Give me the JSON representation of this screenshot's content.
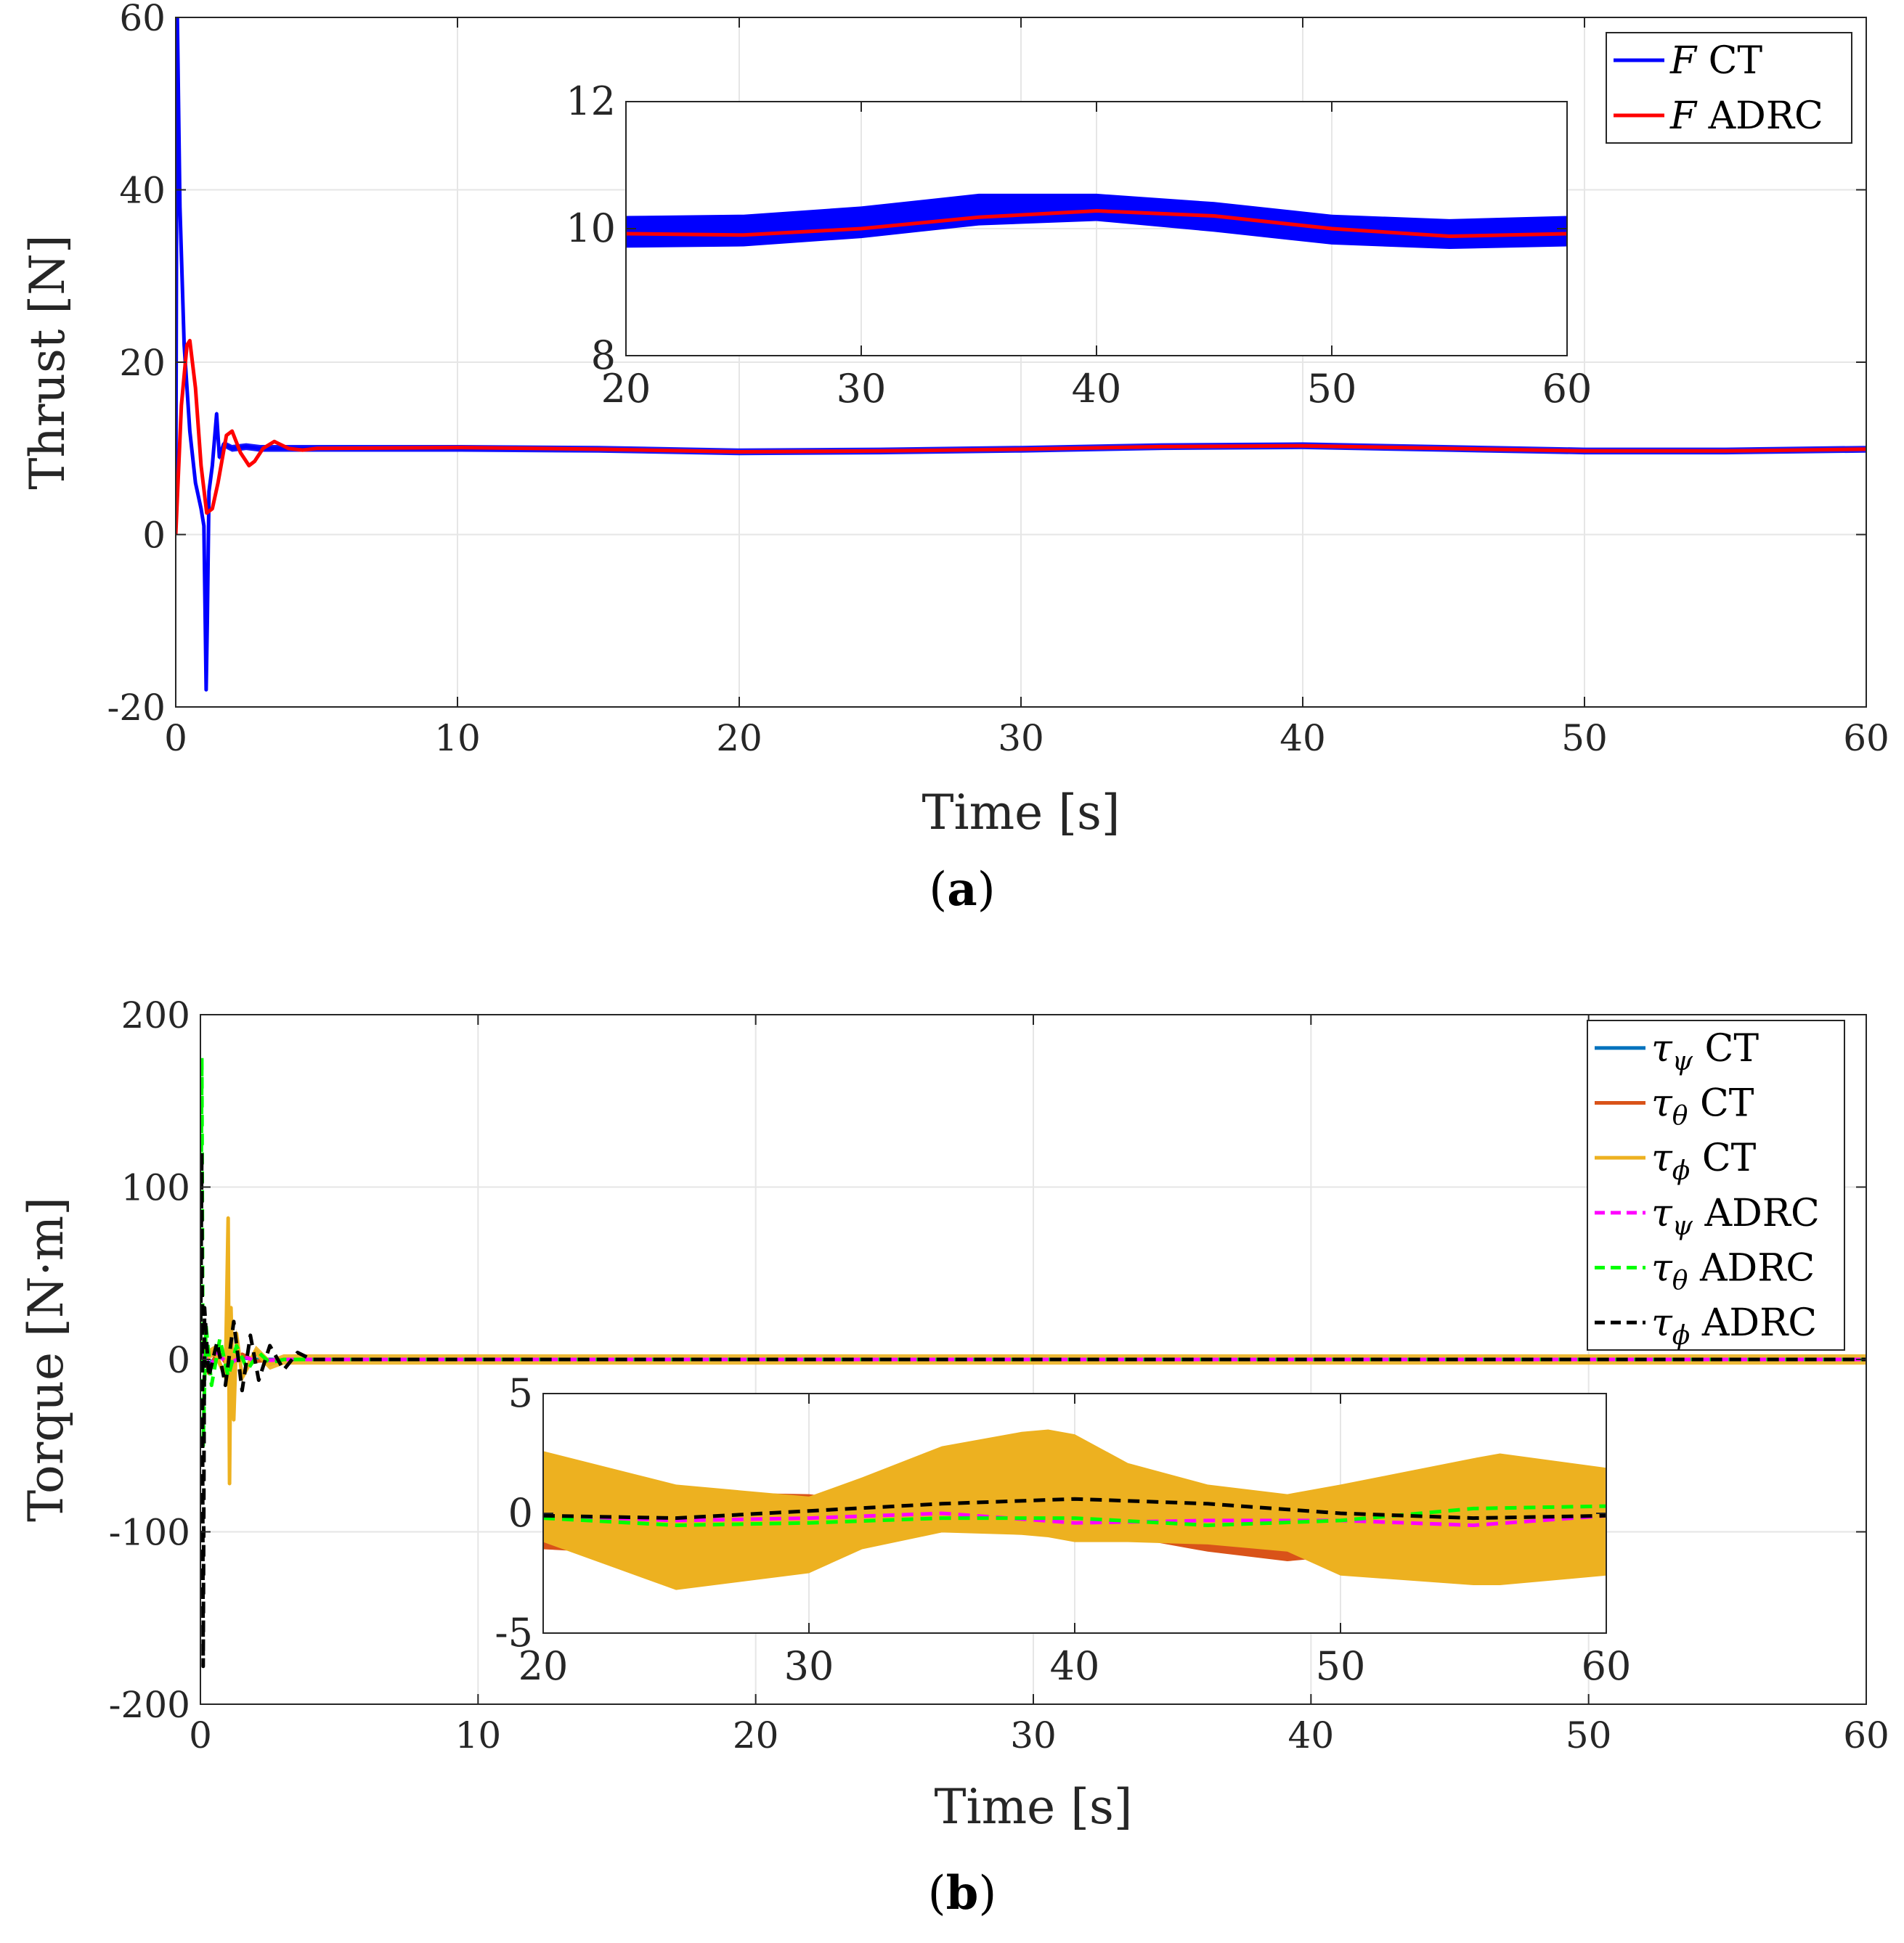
{
  "chart_data": [
    {
      "type": "line",
      "panel_label": "a",
      "xlabel": "Time [s]",
      "ylabel": "Thrust [N]",
      "xlim": [
        0,
        60
      ],
      "ylim": [
        -20,
        60
      ],
      "xticks": [
        "0",
        "10",
        "20",
        "30",
        "40",
        "50",
        "60"
      ],
      "yticks": [
        "-20",
        "0",
        "20",
        "40",
        "60"
      ],
      "grid": true,
      "legend_position": "top-right",
      "series": [
        {
          "name": "F CT",
          "legend_sym": "F",
          "legend_text": " CT",
          "color": "#0000ff",
          "style": "solid",
          "x": [
            0,
            0.05,
            0.15,
            0.3,
            0.5,
            0.7,
            0.9,
            1.0,
            1.08,
            1.12,
            1.18,
            1.3,
            1.45,
            1.55,
            1.7,
            2.0,
            2.5,
            3,
            5,
            10,
            15,
            20,
            25,
            30,
            35,
            40,
            45,
            50,
            55,
            60
          ],
          "y": [
            0,
            62,
            38,
            22,
            12,
            6,
            3,
            1,
            -18,
            -10,
            5,
            8,
            14,
            9,
            10.5,
            10,
            10.2,
            10,
            10,
            10,
            9.9,
            9.6,
            9.7,
            9.9,
            10.2,
            10.3,
            10,
            9.7,
            9.7,
            9.9
          ],
          "band": 0.4
        },
        {
          "name": "F ADRC",
          "legend_sym": "F",
          "legend_text": " ADRC",
          "color": "#ff0000",
          "style": "solid",
          "x": [
            0,
            0.2,
            0.4,
            0.5,
            0.7,
            0.9,
            1.1,
            1.3,
            1.5,
            1.8,
            2.0,
            2.3,
            2.6,
            2.8,
            3.1,
            3.5,
            4.0,
            4.5,
            5,
            10,
            15,
            20,
            25,
            30,
            35,
            40,
            45,
            50,
            55,
            60
          ],
          "y": [
            0,
            15,
            22,
            22.5,
            17,
            8,
            2.5,
            3,
            6,
            11.5,
            12,
            9.5,
            8,
            8.5,
            10,
            10.8,
            10,
            9.8,
            10,
            10.1,
            9.9,
            9.6,
            9.7,
            9.9,
            10.2,
            10.3,
            10,
            9.7,
            9.7,
            9.9
          ]
        }
      ],
      "inset": {
        "xlim": [
          20,
          60
        ],
        "ylim": [
          8,
          12
        ],
        "xticks": [
          "20",
          "30",
          "40",
          "50",
          "60"
        ],
        "yticks": [
          "8",
          "10",
          "12"
        ],
        "series": [
          {
            "name": "F CT",
            "color": "#0000ff",
            "type": "band",
            "x": [
              20,
              25,
              30,
              35,
              40,
              45,
              50,
              55,
              60
            ],
            "lower": [
              9.7,
              9.72,
              9.85,
              10.05,
              10.12,
              9.95,
              9.75,
              9.68,
              9.72
            ],
            "upper": [
              10.2,
              10.22,
              10.35,
              10.55,
              10.55,
              10.42,
              10.22,
              10.15,
              10.2
            ]
          },
          {
            "name": "F ADRC",
            "color": "#ff0000",
            "type": "line",
            "x": [
              20,
              25,
              30,
              35,
              40,
              45,
              50,
              55,
              60
            ],
            "y": [
              9.92,
              9.9,
              10.0,
              10.18,
              10.28,
              10.2,
              10.0,
              9.88,
              9.92
            ]
          }
        ]
      }
    },
    {
      "type": "line",
      "panel_label": "b",
      "xlabel": "Time [s]",
      "ylabel": "Torque [N·m]",
      "xlim": [
        0,
        60
      ],
      "ylim": [
        -200,
        200
      ],
      "xticks": [
        "0",
        "10",
        "20",
        "30",
        "40",
        "50",
        "60"
      ],
      "yticks": [
        "-200",
        "-100",
        "0",
        "100",
        "200"
      ],
      "grid": true,
      "legend_position": "top-right",
      "series": [
        {
          "name": "τψ CT",
          "legend_sym": "τ",
          "legend_sub": "ψ",
          "legend_text": " CT",
          "color": "#0072bd",
          "style": "solid",
          "x": [
            0,
            0.1,
            0.3,
            0.6,
            1.0,
            1.5,
            2,
            3,
            5,
            10,
            20,
            30,
            40,
            50,
            60
          ],
          "y": [
            0,
            5,
            -3,
            2,
            -1,
            1,
            0,
            0,
            0,
            0,
            0,
            0,
            0,
            0,
            0
          ]
        },
        {
          "name": "τθ CT",
          "legend_sym": "τ",
          "legend_sub": "θ",
          "legend_text": " CT",
          "color": "#d95319",
          "style": "solid",
          "x": [
            0,
            0.1,
            0.3,
            0.6,
            1.0,
            1.5,
            2,
            3,
            5,
            10,
            20,
            30,
            40,
            50,
            60
          ],
          "y": [
            0,
            10,
            -8,
            5,
            -4,
            3,
            -1,
            0,
            0,
            0,
            0,
            0,
            0,
            0,
            0
          ]
        },
        {
          "name": "τϕ CT",
          "legend_sym": "τ",
          "legend_sub": "ϕ",
          "legend_text": " CT",
          "color": "#edb120",
          "style": "solid",
          "x": [
            0,
            0.5,
            0.9,
            1.0,
            1.05,
            1.1,
            1.2,
            1.3,
            1.5,
            2.0,
            2.5,
            3,
            5,
            10,
            20,
            30,
            40,
            50,
            60
          ],
          "y": [
            0,
            5,
            -10,
            82,
            -72,
            30,
            -35,
            15,
            -10,
            5,
            -3,
            0,
            0,
            0,
            0,
            0,
            0,
            0,
            0
          ],
          "band": 3
        },
        {
          "name": "τψ ADRC",
          "legend_sym": "τ",
          "legend_sub": "ψ",
          "legend_text": " ADRC",
          "color": "#ff00ff",
          "style": "dashed",
          "x": [
            0,
            0.1,
            0.3,
            0.6,
            1.0,
            1.5,
            2,
            3,
            5,
            10,
            20,
            30,
            40,
            50,
            60
          ],
          "y": [
            0,
            8,
            -6,
            4,
            -3,
            2,
            -1,
            0,
            0,
            0,
            0,
            0,
            0,
            0,
            0
          ]
        },
        {
          "name": "τθ ADRC",
          "legend_sym": "τ",
          "legend_sub": "θ",
          "legend_text": " ADRC",
          "color": "#00ff00",
          "style": "dashed",
          "x": [
            0,
            0.05,
            0.1,
            0.2,
            0.4,
            0.7,
            1.0,
            1.3,
            1.7,
            2.1,
            2.5,
            3,
            5,
            10,
            20,
            30,
            40,
            50,
            60
          ],
          "y": [
            0,
            175,
            -50,
            20,
            -15,
            12,
            -10,
            8,
            -6,
            4,
            -2,
            0,
            0,
            0,
            0,
            0,
            0,
            0,
            0
          ]
        },
        {
          "name": "τϕ ADRC",
          "legend_sym": "τ",
          "legend_sub": "ϕ",
          "legend_text": " ADRC",
          "color": "#000000",
          "style": "dashed",
          "x": [
            0,
            0.05,
            0.1,
            0.15,
            0.3,
            0.6,
            0.9,
            1.2,
            1.5,
            1.8,
            2.1,
            2.5,
            3.0,
            3.5,
            4.0,
            5,
            10,
            20,
            30,
            40,
            50,
            60
          ],
          "y": [
            0,
            120,
            -178,
            30,
            -10,
            10,
            -15,
            22,
            -18,
            14,
            -12,
            8,
            -6,
            4,
            0,
            0,
            0,
            0,
            0,
            0,
            0,
            0
          ]
        }
      ],
      "inset": {
        "xlim": [
          20,
          60
        ],
        "ylim": [
          -5,
          5
        ],
        "xticks": [
          "20",
          "30",
          "40",
          "50",
          "60"
        ],
        "yticks": [
          "-5",
          "0",
          "5"
        ],
        "series": [
          {
            "name": "τθ CT",
            "color": "#d95319",
            "type": "band",
            "x": [
              20,
              25,
              30,
              35,
              40,
              45,
              48,
              50,
              55,
              60
            ],
            "lower": [
              -1.5,
              -1.8,
              -1.5,
              -0.8,
              -0.6,
              -1.6,
              -2,
              -1.8,
              -1,
              -1.6
            ],
            "upper": [
              1.5,
              0.9,
              0.8,
              0.2,
              -0.3,
              -0.8,
              -0.5,
              -0.2,
              0.5,
              1.4
            ]
          },
          {
            "name": "τϕ CT",
            "color": "#edb120",
            "type": "band",
            "x": [
              20,
              25,
              30,
              32,
              35,
              38,
              39,
              40,
              42,
              45,
              48,
              50,
              55,
              56,
              60
            ],
            "lower": [
              -1.2,
              -3.2,
              -2.5,
              -1.5,
              -0.8,
              -0.9,
              -1.0,
              -1.2,
              -1.2,
              -1.3,
              -1.6,
              -2.6,
              -3.0,
              -3.0,
              -2.6
            ],
            "upper": [
              2.6,
              1.2,
              0.7,
              1.5,
              2.8,
              3.4,
              3.5,
              3.3,
              2.1,
              1.2,
              0.8,
              1.2,
              2.3,
              2.5,
              1.9
            ]
          },
          {
            "name": "τψ ADRC",
            "color": "#ff00ff",
            "type": "dashed",
            "x": [
              20,
              25,
              30,
              35,
              40,
              45,
              50,
              55,
              60
            ],
            "y": [
              -0.1,
              -0.3,
              -0.2,
              0.0,
              -0.4,
              -0.3,
              -0.3,
              -0.5,
              -0.1
            ]
          },
          {
            "name": "τθ ADRC",
            "color": "#00ff00",
            "type": "dashed",
            "x": [
              20,
              25,
              30,
              35,
              40,
              45,
              50,
              55,
              60
            ],
            "y": [
              -0.2,
              -0.5,
              -0.4,
              -0.2,
              -0.2,
              -0.5,
              -0.3,
              0.2,
              0.3
            ]
          },
          {
            "name": "τϕ ADRC",
            "color": "#000000",
            "type": "dashed",
            "x": [
              20,
              25,
              30,
              35,
              40,
              45,
              50,
              55,
              60
            ],
            "y": [
              -0.1,
              -0.2,
              0.1,
              0.4,
              0.6,
              0.4,
              0.0,
              -0.2,
              -0.1
            ]
          }
        ]
      }
    }
  ],
  "captions": {
    "a_open": "(",
    "a_label": "a",
    "a_close": ")",
    "b_open": "(",
    "b_label": "b",
    "b_close": ")"
  }
}
